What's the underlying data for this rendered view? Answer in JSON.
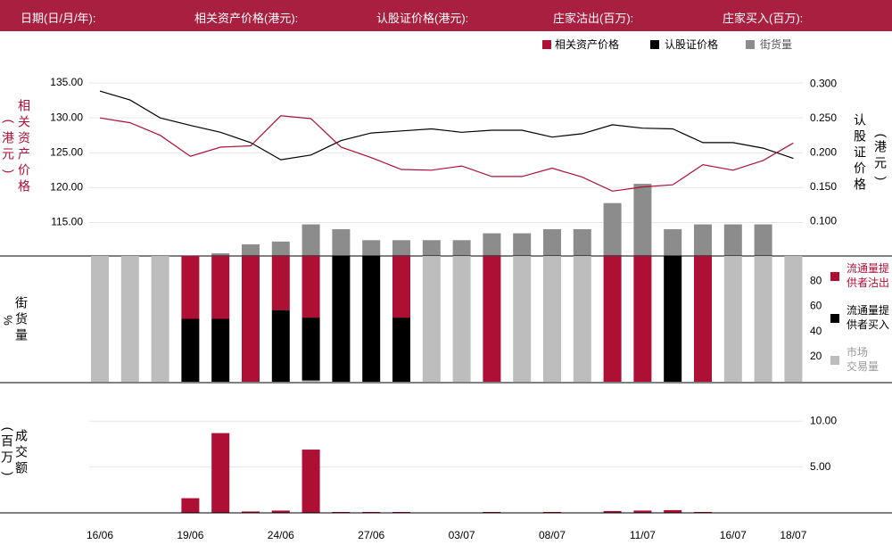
{
  "header": {
    "date_label": "日期(日/月/年):",
    "asset_price_label": "相关资产价格(港元):",
    "warrant_price_label": "认股证价格(港元):",
    "mm_sell_label": "庄家沽出(百万):",
    "mm_buy_label": "庄家买入(百万):"
  },
  "colors": {
    "header_bg": "#a91f3f",
    "crimson": "#ad0f35",
    "black": "#000000",
    "outstanding_gray": "#8c8c8c",
    "market_gray": "#bdbdbd",
    "grid": "#e6e6e6"
  },
  "chart_data": [
    {
      "type": "line",
      "legend": {
        "asset": "相关资产价格",
        "warrant": "认股证价格",
        "outstanding": "街货量"
      },
      "ylabel_left": [
        "相",
        "关",
        "资",
        "产",
        "价",
        "格"
      ],
      "ylabel_left_unit": [
        "港",
        "元"
      ],
      "ylabel_right": [
        "认",
        "股",
        "证",
        "价",
        "格"
      ],
      "ylabel_right_unit": [
        "港",
        "元"
      ],
      "y_left_ticks": [
        "135.00",
        "130.00",
        "125.00",
        "120.00",
        "115.00"
      ],
      "y_right_ticks": [
        "0.300",
        "0.250",
        "0.200",
        "0.150",
        "0.100"
      ],
      "ylim_left": [
        110.2,
        136.8
      ],
      "ylim_right": [
        0.05,
        0.32
      ],
      "asset_price": [
        130.0,
        129.3,
        127.5,
        124.5,
        125.8,
        126.0,
        130.3,
        129.9,
        125.8,
        124.3,
        122.6,
        122.5,
        123.1,
        121.6,
        121.6,
        122.8,
        121.5,
        119.5,
        120.1,
        120.4,
        123.3,
        122.5,
        123.9,
        126.4
      ],
      "warrant_price": [
        0.29,
        0.277,
        0.251,
        0.24,
        0.23,
        0.215,
        0.19,
        0.197,
        0.218,
        0.229,
        0.232,
        0.235,
        0.23,
        0.233,
        0.233,
        0.223,
        0.228,
        0.241,
        0.236,
        0.235,
        0.215,
        0.215,
        0.207,
        0.192
      ],
      "outstanding": [
        0,
        0,
        0,
        0,
        0.004,
        0.017,
        0.021,
        0.046,
        0.039,
        0.023,
        0.023,
        0.023,
        0.023,
        0.033,
        0.033,
        0.039,
        0.039,
        0.077,
        0.105,
        0.039,
        0.046,
        0.046,
        0.046,
        0
      ]
    },
    {
      "type": "bar",
      "ylabel": [
        "街",
        "货",
        "量"
      ],
      "ylabel_unit": "%",
      "y_ticks": [
        "80",
        "60",
        "40",
        "20"
      ],
      "ylim": [
        0,
        100
      ],
      "legend": {
        "sell": [
          "流通量提",
          "供者沽出"
        ],
        "buy": [
          "流通量提",
          "供者买入"
        ],
        "market": [
          "市场",
          "交易量"
        ]
      },
      "sell_pct": [
        0,
        0,
        0,
        50,
        50,
        100,
        43,
        49,
        0,
        0,
        49,
        0,
        0,
        100,
        0,
        0,
        0,
        100,
        100,
        0,
        100,
        0,
        0,
        0
      ],
      "buy_pct": [
        0,
        0,
        0,
        50,
        50,
        0,
        57,
        50,
        100,
        100,
        51,
        0,
        0,
        0,
        0,
        0,
        0,
        0,
        0,
        100,
        0,
        0,
        0,
        0
      ],
      "market_pct": [
        100,
        100,
        100,
        0,
        0,
        0,
        0,
        1,
        0,
        0,
        0,
        100,
        100,
        0,
        100,
        100,
        100,
        0,
        0,
        0,
        0,
        100,
        100,
        100
      ]
    },
    {
      "type": "bar",
      "ylabel": [
        "成",
        "交",
        "额"
      ],
      "ylabel_unit": [
        "百",
        "万"
      ],
      "y_ticks": [
        "10.00",
        "5.00"
      ],
      "ylim": [
        0,
        10.7
      ],
      "turnover": [
        0,
        0,
        0,
        1.6,
        8.7,
        0.15,
        0.25,
        6.9,
        0.1,
        0.1,
        0.1,
        0,
        0,
        0.1,
        0,
        0.1,
        0,
        0.2,
        0.25,
        0.3,
        0.1,
        0,
        0,
        0
      ]
    }
  ],
  "x_axis": {
    "tick_labels": [
      "16/06",
      "19/06",
      "24/06",
      "27/06",
      "03/07",
      "08/07",
      "11/07",
      "16/07",
      "18/07"
    ],
    "tick_index": [
      0,
      3,
      6,
      9,
      12,
      15,
      18,
      21,
      23
    ]
  }
}
